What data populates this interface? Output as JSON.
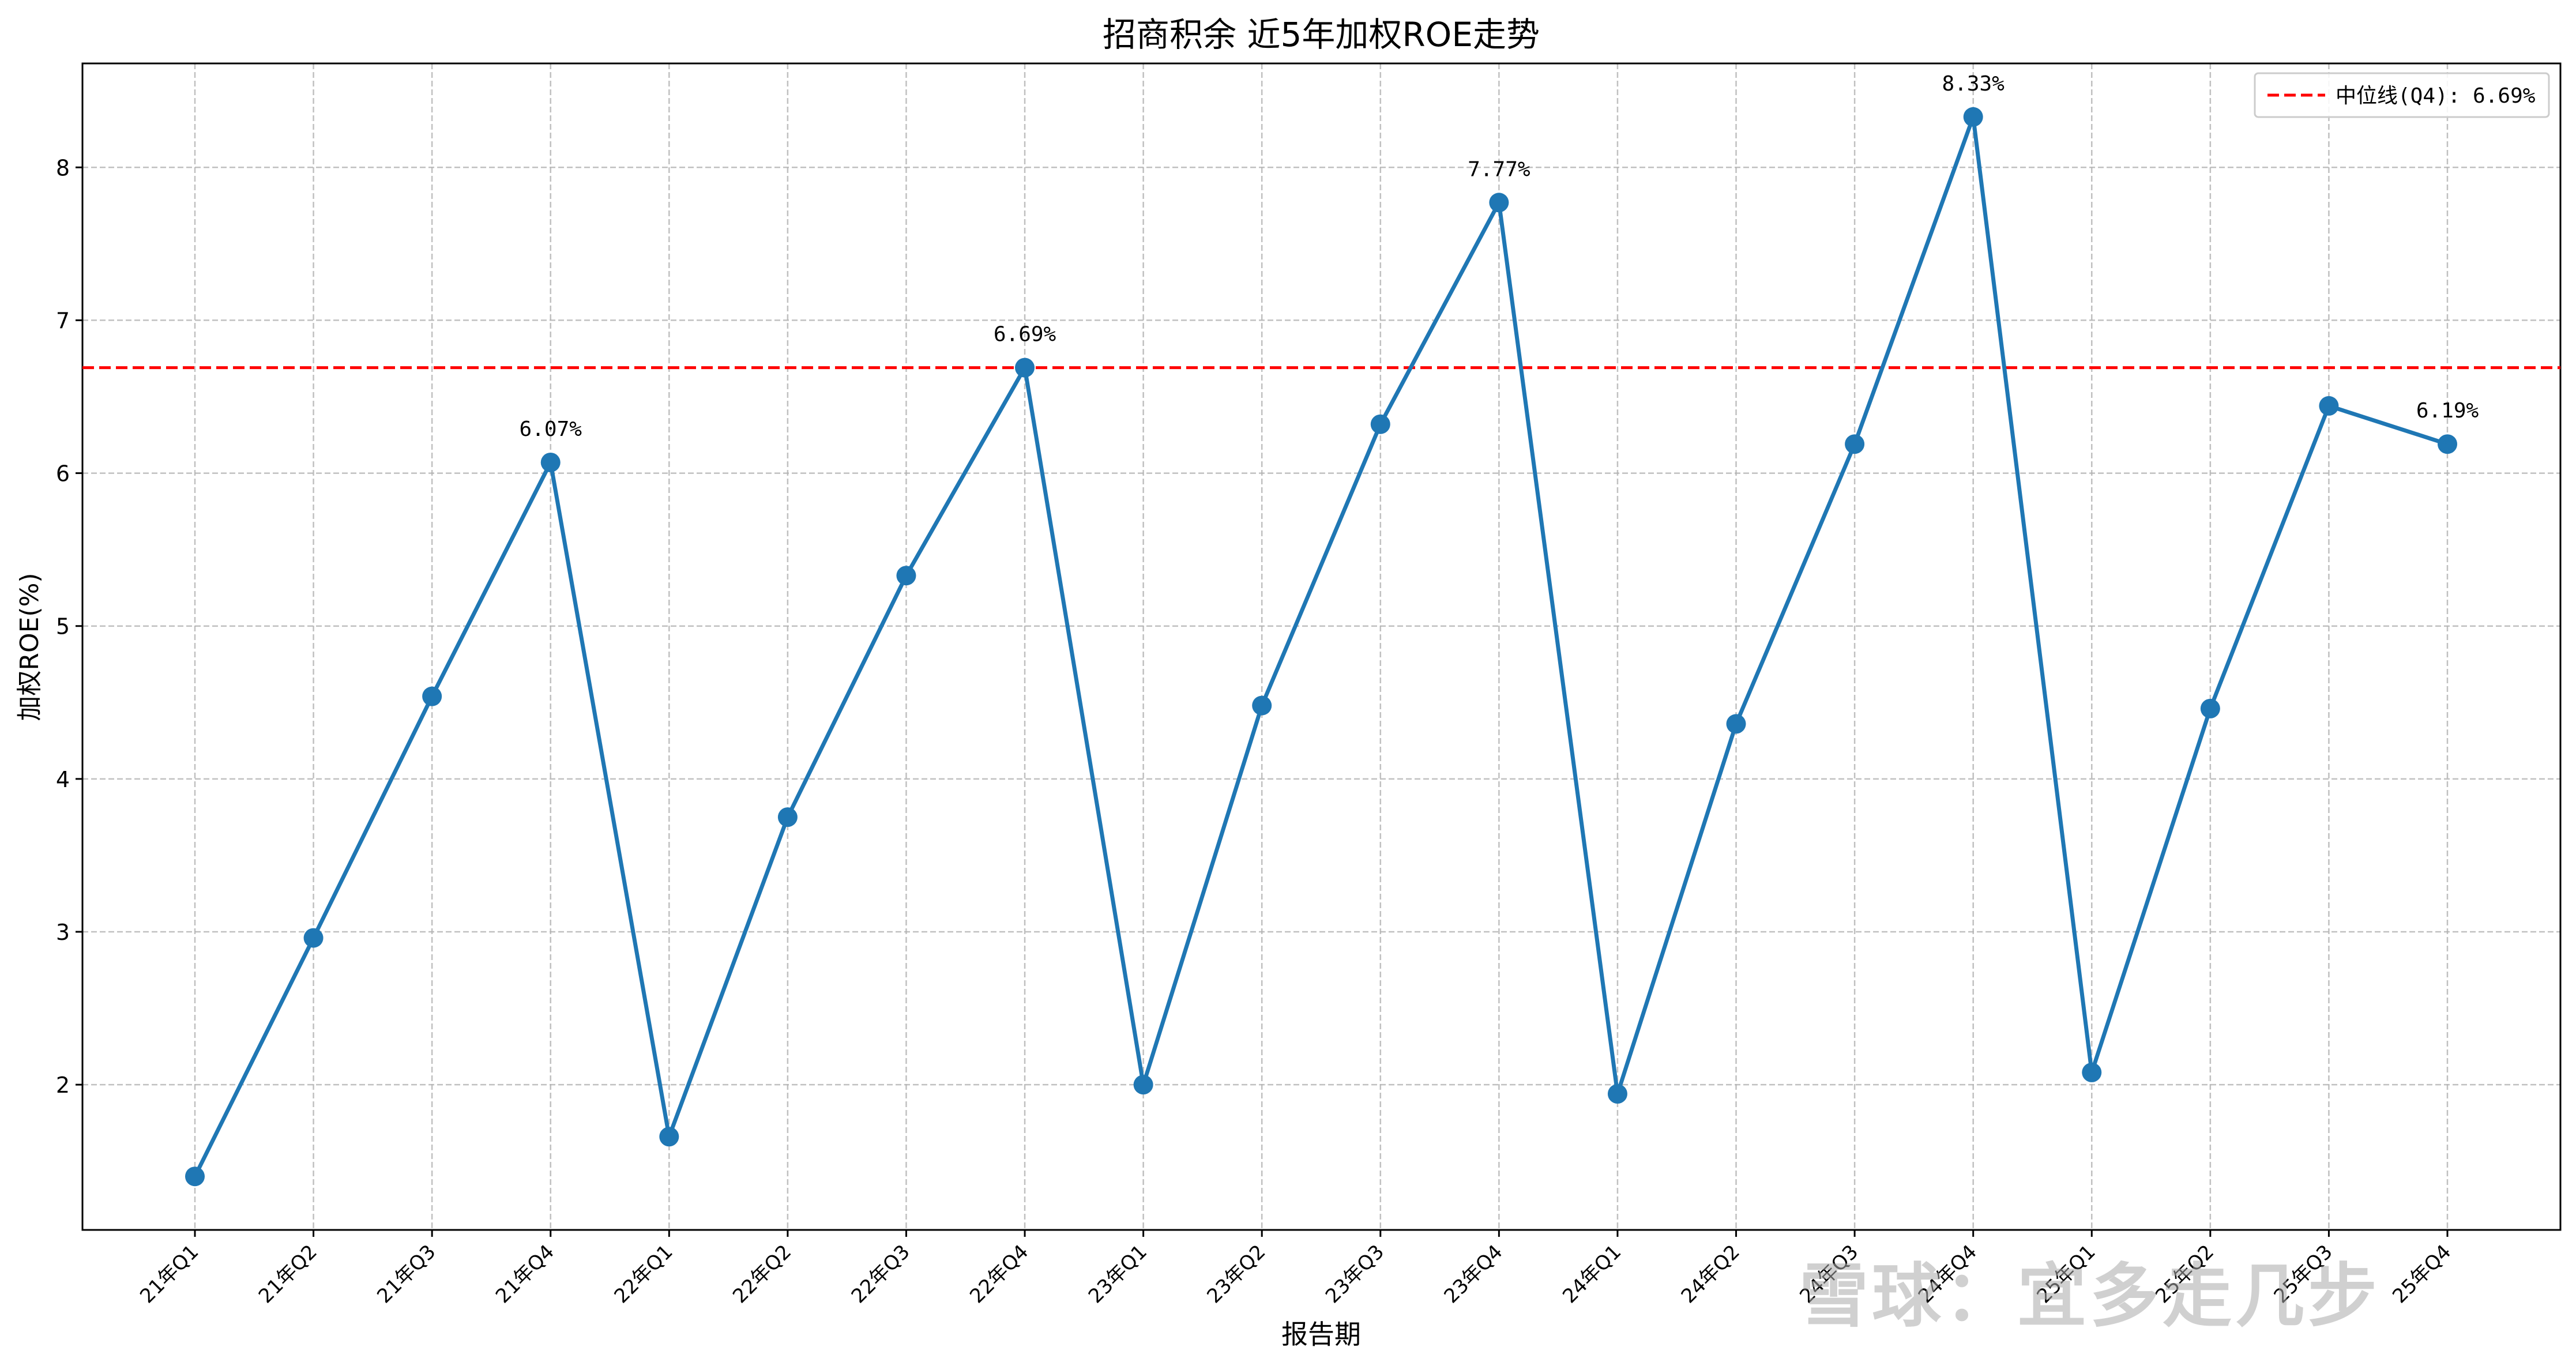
{
  "chart_data": {
    "type": "line",
    "title": "招商积余 近5年加权ROE走势",
    "xlabel": "报告期",
    "ylabel": "加权ROE(%)",
    "categories": [
      "21年Q1",
      "21年Q2",
      "21年Q3",
      "21年Q4",
      "22年Q1",
      "22年Q2",
      "22年Q3",
      "22年Q4",
      "23年Q1",
      "23年Q2",
      "23年Q3",
      "23年Q4",
      "24年Q1",
      "24年Q2",
      "24年Q3",
      "24年Q4",
      "25年Q1",
      "25年Q2",
      "25年Q3",
      "25年Q4"
    ],
    "series": [
      {
        "values": [
          1.4,
          2.96,
          4.54,
          6.07,
          1.66,
          3.75,
          5.33,
          6.69,
          2.0,
          4.48,
          6.32,
          7.77,
          1.94,
          4.36,
          6.19,
          8.33,
          2.08,
          4.46,
          6.44,
          6.19
        ],
        "color": "#1f77b4"
      }
    ],
    "annotations": [
      {
        "index": 3,
        "text": "6.07%"
      },
      {
        "index": 7,
        "text": "6.69%"
      },
      {
        "index": 11,
        "text": "7.77%"
      },
      {
        "index": 15,
        "text": "8.33%"
      },
      {
        "index": 19,
        "text": "6.19%"
      }
    ],
    "reference_line": {
      "value": 6.69,
      "label": "中位线(Q4): 6.69%",
      "color": "#ff0000"
    },
    "yticks": [
      2,
      3,
      4,
      5,
      6,
      7,
      8
    ],
    "ylim": [
      1.05,
      8.68
    ],
    "grid": true,
    "legend_position": "top-right"
  },
  "watermark": "雪球：宜多走几步"
}
